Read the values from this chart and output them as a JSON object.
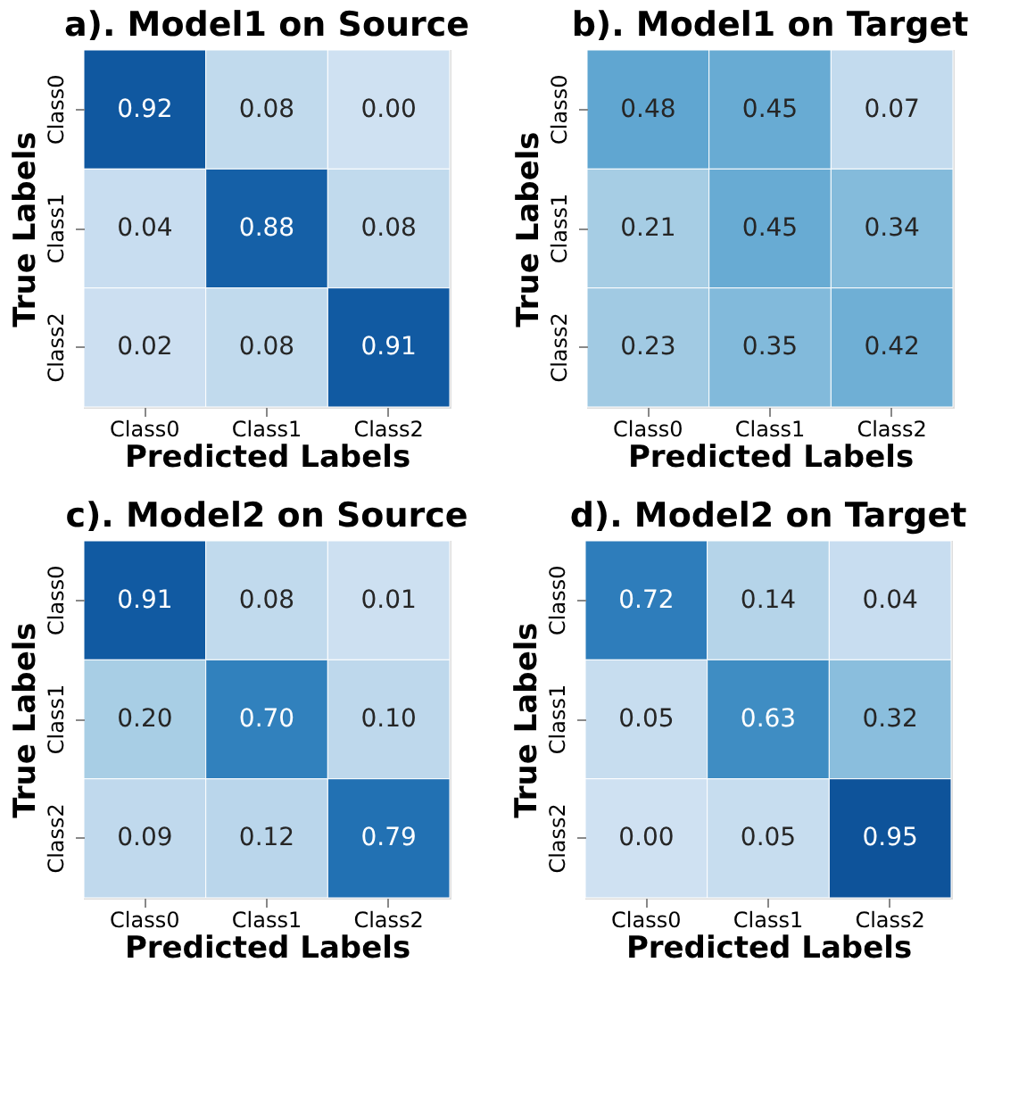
{
  "chart_data": [
    {
      "type": "heatmap",
      "title": "a). Model1 on Source",
      "xlabel": "Predicted Labels",
      "ylabel": "True Labels",
      "categories": [
        "Class0",
        "Class1",
        "Class2"
      ],
      "y_categories": [
        "Class0",
        "Class1",
        "Class2"
      ],
      "cells": [
        [
          0.92,
          0.08,
          0.0
        ],
        [
          0.04,
          0.88,
          0.08
        ],
        [
          0.02,
          0.08,
          0.91
        ]
      ],
      "cell_labels": [
        [
          "0.92",
          "0.08",
          "0.00"
        ],
        [
          "0.04",
          "0.88",
          "0.08"
        ],
        [
          "0.02",
          "0.08",
          "0.91"
        ]
      ]
    },
    {
      "type": "heatmap",
      "title": "b). Model1 on Target",
      "xlabel": "Predicted Labels",
      "ylabel": "True Labels",
      "categories": [
        "Class0",
        "Class1",
        "Class2"
      ],
      "y_categories": [
        "Class0",
        "Class1",
        "Class2"
      ],
      "cells": [
        [
          0.48,
          0.45,
          0.07
        ],
        [
          0.21,
          0.45,
          0.34
        ],
        [
          0.23,
          0.35,
          0.42
        ]
      ],
      "cell_labels": [
        [
          "0.48",
          "0.45",
          "0.07"
        ],
        [
          "0.21",
          "0.45",
          "0.34"
        ],
        [
          "0.23",
          "0.35",
          "0.42"
        ]
      ]
    },
    {
      "type": "heatmap",
      "title": "c). Model2 on Source",
      "xlabel": "Predicted Labels",
      "ylabel": "True Labels",
      "categories": [
        "Class0",
        "Class1",
        "Class2"
      ],
      "y_categories": [
        "Class0",
        "Class1",
        "Class2"
      ],
      "cells": [
        [
          0.91,
          0.08,
          0.01
        ],
        [
          0.2,
          0.7,
          0.1
        ],
        [
          0.09,
          0.12,
          0.79
        ]
      ],
      "cell_labels": [
        [
          "0.91",
          "0.08",
          "0.01"
        ],
        [
          "0.20",
          "0.70",
          "0.10"
        ],
        [
          "0.09",
          "0.12",
          "0.79"
        ]
      ]
    },
    {
      "type": "heatmap",
      "title": "d). Model2 on Target",
      "xlabel": "Predicted Labels",
      "ylabel": "True Labels",
      "categories": [
        "Class0",
        "Class1",
        "Class2"
      ],
      "y_categories": [
        "Class0",
        "Class1",
        "Class2"
      ],
      "cells": [
        [
          0.72,
          0.14,
          0.04
        ],
        [
          0.05,
          0.63,
          0.32
        ],
        [
          0.0,
          0.05,
          0.95
        ]
      ],
      "cell_labels": [
        [
          "0.72",
          "0.14",
          "0.04"
        ],
        [
          "0.05",
          "0.63",
          "0.32"
        ],
        [
          "0.00",
          "0.05",
          "0.95"
        ]
      ]
    }
  ]
}
